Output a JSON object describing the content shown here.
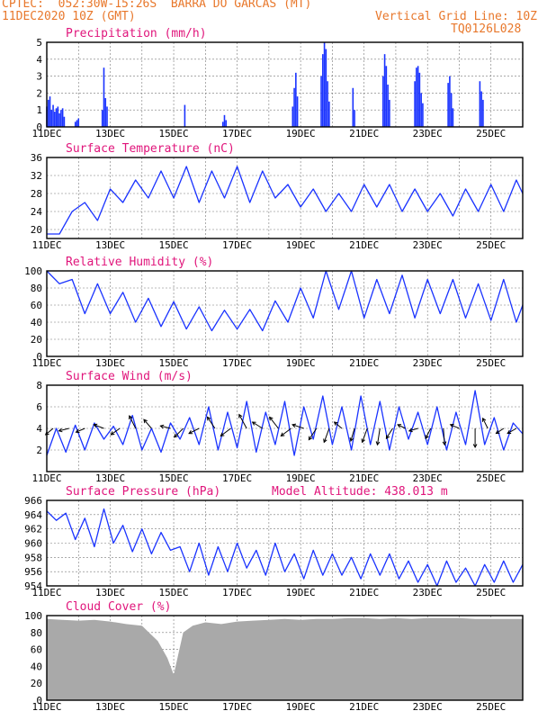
{
  "header": {
    "line1": "CPTEC:  052:30W-15:26S  BARRA DO GARCAS (MT)",
    "line2_left": "11DEC2020 10Z (GMT)",
    "line2_right": "Vertical Grid Line: 10Z",
    "line3_right": "TQ0126L028"
  },
  "colors": {
    "header": "#e8782c",
    "title": "#e0157b",
    "series": "#1a33ff",
    "arrow": "#000000",
    "cloud": "#a9a9a9"
  },
  "chart_data": [
    {
      "type": "bar",
      "title": "Precipitation (mm/h)",
      "x_start_day": 11,
      "x_end_day": 26,
      "x_ticks": [
        "11DEC",
        "13DEC",
        "15DEC",
        "17DEC",
        "19DEC",
        "21DEC",
        "23DEC",
        "25DEC"
      ],
      "ylim": [
        0,
        5
      ],
      "y_ticks": [
        0,
        1,
        2,
        3,
        4,
        5
      ],
      "bars": [
        [
          11.0,
          1.2
        ],
        [
          11.05,
          1.6
        ],
        [
          11.1,
          1.8
        ],
        [
          11.15,
          1.0
        ],
        [
          11.2,
          1.3
        ],
        [
          11.25,
          0.9
        ],
        [
          11.3,
          1.1
        ],
        [
          11.35,
          1.2
        ],
        [
          11.4,
          0.8
        ],
        [
          11.45,
          1.0
        ],
        [
          11.5,
          1.1
        ],
        [
          11.55,
          0.6
        ],
        [
          11.9,
          0.3
        ],
        [
          11.95,
          0.4
        ],
        [
          12.0,
          0.5
        ],
        [
          12.75,
          1.0
        ],
        [
          12.8,
          3.5
        ],
        [
          12.85,
          1.7
        ],
        [
          12.9,
          1.2
        ],
        [
          15.35,
          1.3
        ],
        [
          16.55,
          0.3
        ],
        [
          16.6,
          0.7
        ],
        [
          16.65,
          0.4
        ],
        [
          18.75,
          1.2
        ],
        [
          18.8,
          2.3
        ],
        [
          18.85,
          3.2
        ],
        [
          18.9,
          1.8
        ],
        [
          19.65,
          3.0
        ],
        [
          19.7,
          4.3
        ],
        [
          19.75,
          5.0
        ],
        [
          19.8,
          4.6
        ],
        [
          19.85,
          2.7
        ],
        [
          19.9,
          1.5
        ],
        [
          20.65,
          2.3
        ],
        [
          20.7,
          1.0
        ],
        [
          21.6,
          3.0
        ],
        [
          21.65,
          4.3
        ],
        [
          21.7,
          3.6
        ],
        [
          21.75,
          2.5
        ],
        [
          21.8,
          1.6
        ],
        [
          22.6,
          2.7
        ],
        [
          22.65,
          3.5
        ],
        [
          22.7,
          3.6
        ],
        [
          22.75,
          3.2
        ],
        [
          22.8,
          2.0
        ],
        [
          22.85,
          1.4
        ],
        [
          23.65,
          2.6
        ],
        [
          23.7,
          3.0
        ],
        [
          23.75,
          2.0
        ],
        [
          23.8,
          1.1
        ],
        [
          24.65,
          2.7
        ],
        [
          24.7,
          2.1
        ],
        [
          24.75,
          1.6
        ]
      ]
    },
    {
      "type": "line",
      "title": "Surface Temperature (nC)",
      "x_start_day": 11,
      "x_end_day": 26,
      "ylim": [
        18,
        36
      ],
      "y_ticks": [
        20,
        24,
        28,
        32,
        36
      ],
      "x": [
        11.0,
        11.4,
        11.8,
        12.2,
        12.6,
        13.0,
        13.4,
        13.8,
        14.2,
        14.6,
        15.0,
        15.4,
        15.8,
        16.2,
        16.6,
        17.0,
        17.4,
        17.8,
        18.2,
        18.6,
        19.0,
        19.4,
        19.8,
        20.2,
        20.6,
        21.0,
        21.4,
        21.8,
        22.2,
        22.6,
        23.0,
        23.4,
        23.8,
        24.2,
        24.6,
        25.0,
        25.4,
        25.8,
        26.0
      ],
      "y": [
        19,
        19,
        24,
        26,
        22,
        29,
        26,
        31,
        27,
        33,
        27,
        34,
        26,
        33,
        27,
        34,
        26,
        33,
        27,
        30,
        25,
        29,
        24,
        28,
        24,
        30,
        25,
        30,
        24,
        29,
        24,
        28,
        23,
        29,
        24,
        30,
        24,
        31,
        28
      ]
    },
    {
      "type": "line",
      "title": "Relative Humidity (%)",
      "x_start_day": 11,
      "x_end_day": 26,
      "ylim": [
        0,
        100
      ],
      "y_ticks": [
        0,
        20,
        40,
        60,
        80,
        100
      ],
      "x": [
        11.0,
        11.4,
        11.8,
        12.2,
        12.6,
        13.0,
        13.4,
        13.8,
        14.2,
        14.6,
        15.0,
        15.4,
        15.8,
        16.2,
        16.6,
        17.0,
        17.4,
        17.8,
        18.2,
        18.6,
        19.0,
        19.4,
        19.8,
        20.2,
        20.6,
        21.0,
        21.4,
        21.8,
        22.2,
        22.6,
        23.0,
        23.4,
        23.8,
        24.2,
        24.6,
        25.0,
        25.4,
        25.8,
        26.0
      ],
      "y": [
        100,
        85,
        90,
        50,
        85,
        50,
        75,
        40,
        68,
        35,
        64,
        32,
        58,
        30,
        54,
        32,
        55,
        30,
        65,
        40,
        80,
        45,
        100,
        55,
        100,
        45,
        90,
        50,
        95,
        45,
        90,
        50,
        90,
        45,
        85,
        42,
        90,
        40,
        60
      ]
    },
    {
      "type": "line",
      "title": "Surface Wind (m/s)",
      "x_start_day": 11,
      "x_end_day": 26,
      "ylim": [
        0,
        8
      ],
      "y_ticks": [
        2,
        4,
        6,
        8
      ],
      "x": [
        11.0,
        11.3,
        11.6,
        11.9,
        12.2,
        12.5,
        12.8,
        13.1,
        13.4,
        13.7,
        14.0,
        14.3,
        14.6,
        14.9,
        15.2,
        15.5,
        15.8,
        16.1,
        16.4,
        16.7,
        17.0,
        17.3,
        17.6,
        17.9,
        18.2,
        18.5,
        18.8,
        19.1,
        19.4,
        19.7,
        20.0,
        20.3,
        20.6,
        20.9,
        21.2,
        21.5,
        21.8,
        22.1,
        22.4,
        22.7,
        23.0,
        23.3,
        23.6,
        23.9,
        24.2,
        24.5,
        24.8,
        25.1,
        25.4,
        25.7,
        26.0
      ],
      "y": [
        1.5,
        4.0,
        1.8,
        4.3,
        2.0,
        4.5,
        3.0,
        4.2,
        2.5,
        5.2,
        2.0,
        4.0,
        1.8,
        4.5,
        3.0,
        5.0,
        2.5,
        6.0,
        2.0,
        5.5,
        2.2,
        6.5,
        1.8,
        5.5,
        2.5,
        6.5,
        1.5,
        6.0,
        3.0,
        7.0,
        2.5,
        6.0,
        2.0,
        7.0,
        2.5,
        6.5,
        2.0,
        6.0,
        3.0,
        5.5,
        2.5,
        6.0,
        2.0,
        5.5,
        2.5,
        7.5,
        2.5,
        5.0,
        2.0,
        4.5,
        3.5
      ],
      "arrows": [
        [
          11.2,
          4.0,
          -0.6,
          -0.5
        ],
        [
          11.7,
          4.0,
          -0.8,
          -0.2
        ],
        [
          12.2,
          4.0,
          -0.7,
          -0.3
        ],
        [
          12.8,
          4.0,
          -0.8,
          0.3
        ],
        [
          13.3,
          4.0,
          -0.7,
          -0.5
        ],
        [
          13.8,
          4.0,
          -0.5,
          1.0
        ],
        [
          14.3,
          4.0,
          -0.6,
          0.7
        ],
        [
          14.9,
          4.0,
          -0.8,
          0.2
        ],
        [
          15.3,
          4.0,
          -0.7,
          -0.7
        ],
        [
          15.8,
          4.0,
          -0.8,
          -0.4
        ],
        [
          16.3,
          4.0,
          -0.6,
          0.9
        ],
        [
          16.8,
          4.0,
          -0.8,
          -0.6
        ],
        [
          17.3,
          4.0,
          -0.6,
          1.1
        ],
        [
          17.8,
          4.0,
          -0.8,
          0.5
        ],
        [
          18.3,
          4.0,
          -0.7,
          0.9
        ],
        [
          18.7,
          4.0,
          -0.8,
          -0.6
        ],
        [
          19.1,
          4.0,
          -0.9,
          0.3
        ],
        [
          19.5,
          4.0,
          -0.6,
          -0.9
        ],
        [
          19.9,
          4.0,
          -0.4,
          -1.1
        ],
        [
          20.3,
          4.0,
          -0.6,
          0.5
        ],
        [
          20.7,
          4.0,
          -0.3,
          -1.0
        ],
        [
          21.1,
          4.0,
          -0.4,
          -1.1
        ],
        [
          21.5,
          4.0,
          -0.2,
          -1.3
        ],
        [
          21.9,
          4.0,
          -0.5,
          -0.8
        ],
        [
          22.3,
          4.0,
          -0.6,
          0.3
        ],
        [
          22.7,
          4.0,
          -0.7,
          -0.2
        ],
        [
          23.1,
          4.0,
          -0.4,
          -0.8
        ],
        [
          23.5,
          4.0,
          0.1,
          -1.3
        ],
        [
          24.0,
          4.0,
          -0.7,
          0.3
        ],
        [
          24.5,
          4.0,
          0.0,
          -1.5
        ],
        [
          24.9,
          4.0,
          -0.4,
          0.8
        ],
        [
          25.4,
          4.0,
          -0.6,
          -0.4
        ],
        [
          25.8,
          4.0,
          -0.7,
          -0.4
        ]
      ]
    },
    {
      "type": "line",
      "title": "Surface Pressure (hPa)",
      "subtitle": "Model Altitude: 438.013 m",
      "x_start_day": 11,
      "x_end_day": 26,
      "ylim": [
        954,
        966
      ],
      "y_ticks": [
        954,
        956,
        958,
        960,
        962,
        964,
        966
      ],
      "x": [
        11.0,
        11.3,
        11.6,
        11.9,
        12.2,
        12.5,
        12.8,
        13.1,
        13.4,
        13.7,
        14.0,
        14.3,
        14.6,
        14.9,
        15.2,
        15.5,
        15.8,
        16.1,
        16.4,
        16.7,
        17.0,
        17.3,
        17.6,
        17.9,
        18.2,
        18.5,
        18.8,
        19.1,
        19.4,
        19.7,
        20.0,
        20.3,
        20.6,
        20.9,
        21.2,
        21.5,
        21.8,
        22.1,
        22.4,
        22.7,
        23.0,
        23.3,
        23.6,
        23.9,
        24.2,
        24.5,
        24.8,
        25.1,
        25.4,
        25.7,
        26.0
      ],
      "y": [
        964.5,
        963.2,
        964.2,
        960.5,
        963.5,
        959.5,
        964.8,
        960.0,
        962.5,
        958.8,
        962.0,
        958.5,
        961.5,
        959.0,
        959.5,
        956.0,
        960.0,
        955.5,
        959.5,
        956.0,
        960.0,
        956.5,
        959.0,
        955.5,
        960.0,
        956.0,
        958.5,
        955.0,
        959.0,
        955.5,
        958.5,
        955.5,
        958.0,
        955.0,
        958.5,
        955.5,
        958.5,
        955.0,
        957.5,
        954.5,
        957.0,
        954.0,
        957.5,
        954.5,
        956.5,
        954.0,
        957.0,
        954.5,
        957.5,
        954.5,
        957.0
      ]
    },
    {
      "type": "area",
      "title": "Cloud Cover (%)",
      "x_start_day": 11,
      "x_end_day": 26,
      "ylim": [
        0,
        100
      ],
      "y_ticks": [
        0,
        20,
        40,
        60,
        80,
        100
      ],
      "x": [
        11.0,
        11.5,
        12.0,
        12.5,
        13.0,
        13.5,
        14.0,
        14.5,
        14.8,
        15.0,
        15.3,
        15.6,
        16.0,
        16.5,
        17.0,
        17.5,
        18.0,
        18.5,
        19.0,
        19.5,
        20.0,
        20.5,
        21.0,
        21.5,
        22.0,
        22.5,
        23.0,
        23.5,
        24.0,
        24.5,
        25.0,
        25.5,
        26.0
      ],
      "y": [
        96,
        95,
        94,
        95,
        93,
        90,
        88,
        70,
        50,
        30,
        80,
        88,
        92,
        90,
        93,
        94,
        95,
        96,
        95,
        96,
        96,
        97,
        97,
        96,
        97,
        96,
        97,
        97,
        97,
        96,
        96,
        96,
        96
      ]
    }
  ]
}
